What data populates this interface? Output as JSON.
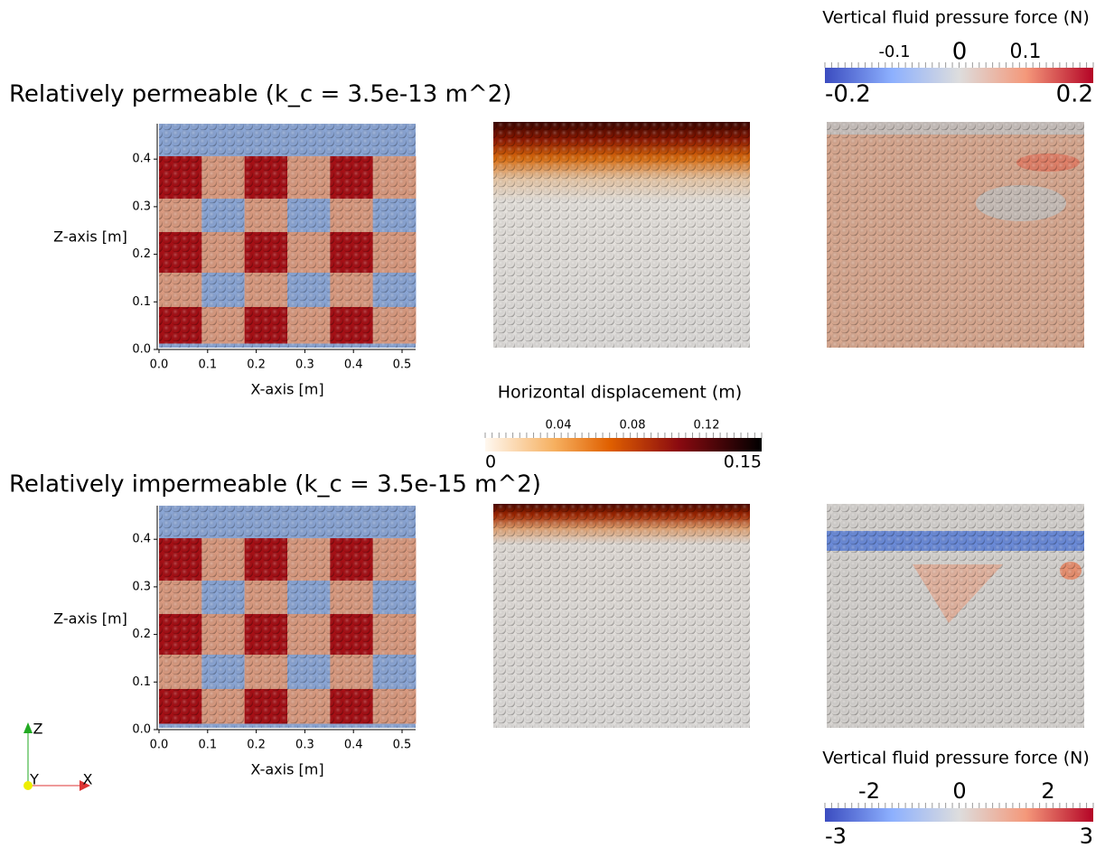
{
  "rows": [
    {
      "title": "Relatively permeable (k_c = 3.5e-13 m^2)",
      "y_axis_label": "Z-axis [m]",
      "x_axis_label": "X-axis [m]",
      "yticks": [
        "0.0",
        "0.1",
        "0.2",
        "0.3",
        "0.4"
      ],
      "xticks": [
        "0.0",
        "0.1",
        "0.2",
        "0.3",
        "0.4",
        "0.5"
      ]
    },
    {
      "title": "Relatively impermeable (k_c = 3.5e-15 m^2)",
      "y_axis_label": "Z-axis [m]",
      "x_axis_label": "X-axis [m]",
      "yticks": [
        "0.0",
        "0.1",
        "0.2",
        "0.3",
        "0.4"
      ],
      "xticks": [
        "0.0",
        "0.1",
        "0.2",
        "0.3",
        "0.4",
        "0.5"
      ]
    }
  ],
  "colorbars": [
    {
      "title": "Vertical fluid pressure force (N)",
      "major_labels": [
        "-0.1",
        "0",
        "0.1"
      ],
      "end_labels": [
        "-0.2",
        "0.2"
      ]
    },
    {
      "title": "Horizontal displacement (m)",
      "major_labels": [
        "0.04",
        "0.08",
        "0.12"
      ],
      "end_labels": [
        "0",
        "0.15"
      ]
    },
    {
      "title": "Vertical fluid pressure force (N)",
      "major_labels": [
        "-2",
        "0",
        "2"
      ],
      "end_labels": [
        "-3",
        "3"
      ]
    }
  ],
  "orientation_axes": {
    "labels": [
      "Z",
      "Y",
      "X"
    ]
  }
}
